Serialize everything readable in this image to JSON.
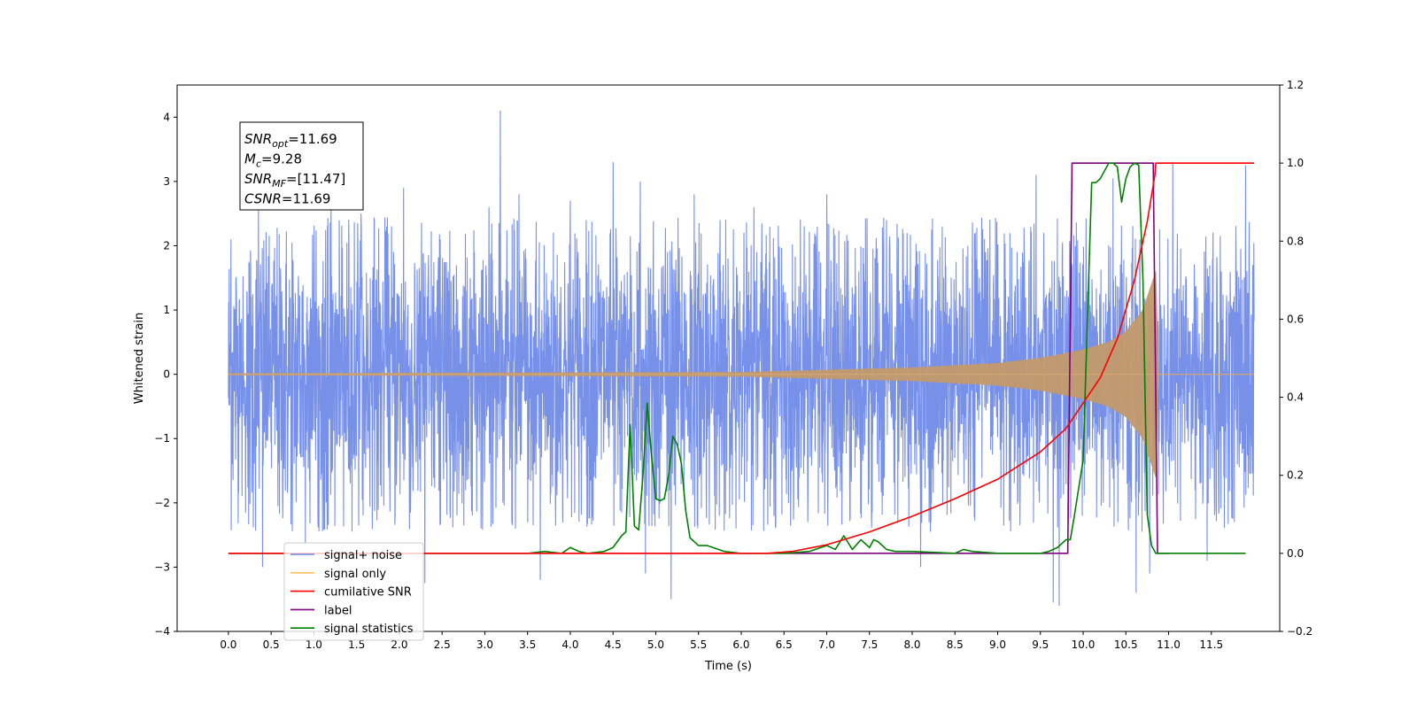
{
  "chart_data": {
    "type": "line",
    "xlabel": "Time (s)",
    "ylabel": "Whitened strain",
    "xlim": [
      -0.6,
      12.3
    ],
    "ylim": [
      -4,
      4.5
    ],
    "y2lim": [
      -0.2,
      1.2
    ],
    "x_ticks": [
      0.0,
      0.5,
      1.0,
      1.5,
      2.0,
      2.5,
      3.0,
      3.5,
      4.0,
      4.5,
      5.0,
      5.5,
      6.0,
      6.5,
      7.0,
      7.5,
      8.0,
      8.5,
      9.0,
      9.5,
      10.0,
      10.5,
      11.0,
      11.5
    ],
    "x_tick_labels": [
      "0.0",
      "0.5",
      "1.0",
      "1.5",
      "2.0",
      "2.5",
      "3.0",
      "3.5",
      "4.0",
      "4.5",
      "5.0",
      "5.5",
      "6.0",
      "6.5",
      "7.0",
      "7.5",
      "8.0",
      "8.5",
      "9.0",
      "9.5",
      "10.0",
      "10.5",
      "11.0",
      "11.5"
    ],
    "y_ticks": [
      -4,
      -3,
      -2,
      -1,
      0,
      1,
      2,
      3,
      4
    ],
    "y_tick_labels": [
      "−4",
      "−3",
      "−2",
      "−1",
      "0",
      "1",
      "2",
      "3",
      "4"
    ],
    "y2_ticks": [
      -0.2,
      0.0,
      0.2,
      0.4,
      0.6,
      0.8,
      1.0,
      1.2
    ],
    "y2_tick_labels": [
      "−0.2",
      "0.0",
      "0.2",
      "0.4",
      "0.6",
      "0.8",
      "1.0",
      "1.2"
    ],
    "annotation": [
      {
        "main": "SNR",
        "sub": "opt",
        "rest": "=11.69"
      },
      {
        "main": "M",
        "sub": "c",
        "rest": "=9.28"
      },
      {
        "main": "SNR",
        "sub": "MF",
        "rest": "=[11.47]"
      },
      {
        "main": "CSNR",
        "sub": "",
        "rest": "=11.69"
      }
    ],
    "legend_placement": "lower-left",
    "legend": [
      {
        "name": "signal+ noise",
        "color": "#6b87e6"
      },
      {
        "name": "signal only",
        "color": "#ffc15c"
      },
      {
        "name": "cumilative SNR",
        "color": "#ff0000"
      },
      {
        "name": "label",
        "color": "#800080"
      },
      {
        "name": "signal statistics",
        "color": "#008000"
      }
    ],
    "series": [
      {
        "name": "signal+ noise",
        "axis": "left",
        "color": "#6b87e6",
        "x_range": [
          0.0,
          12.0
        ],
        "typical_envelope": [
          -1.9,
          1.9
        ],
        "spikes": [
          [
            0.03,
            2.1
          ],
          [
            0.35,
            2.75
          ],
          [
            0.4,
            -3.0
          ],
          [
            0.9,
            -2.65
          ],
          [
            1.2,
            2.95
          ],
          [
            1.55,
            2.5
          ],
          [
            2.05,
            2.9
          ],
          [
            2.3,
            -3.25
          ],
          [
            3.05,
            2.6
          ],
          [
            3.18,
            4.1
          ],
          [
            3.4,
            2.8
          ],
          [
            3.65,
            -3.2
          ],
          [
            4.0,
            2.7
          ],
          [
            4.5,
            3.3
          ],
          [
            4.82,
            3.0
          ],
          [
            4.88,
            -3.1
          ],
          [
            5.18,
            -3.5
          ],
          [
            5.45,
            2.8
          ],
          [
            6.15,
            2.6
          ],
          [
            7.0,
            2.8
          ],
          [
            7.7,
            2.4
          ],
          [
            8.1,
            -3.0
          ],
          [
            9.45,
            3.1
          ],
          [
            9.65,
            -3.55
          ],
          [
            9.72,
            -3.6
          ],
          [
            10.35,
            3.05
          ],
          [
            10.62,
            -3.4
          ],
          [
            10.78,
            -3.1
          ],
          [
            11.05,
            3.3
          ],
          [
            11.45,
            -2.9
          ],
          [
            11.9,
            3.25
          ]
        ]
      },
      {
        "name": "signal only",
        "axis": "left",
        "color": "#ffc15c",
        "x_range": [
          0.0,
          12.0
        ],
        "amplitude_points": [
          [
            0.0,
            0.01
          ],
          [
            6.0,
            0.03
          ],
          [
            8.0,
            0.1
          ],
          [
            9.0,
            0.17
          ],
          [
            9.5,
            0.25
          ],
          [
            10.0,
            0.38
          ],
          [
            10.3,
            0.5
          ],
          [
            10.5,
            0.66
          ],
          [
            10.7,
            1.0
          ],
          [
            10.85,
            1.6
          ],
          [
            10.88,
            0.0
          ]
        ]
      },
      {
        "name": "cumilative SNR",
        "axis": "right",
        "color": "#ff0000",
        "x": [
          0.0,
          6.3,
          6.6,
          7.0,
          7.5,
          8.0,
          8.5,
          9.0,
          9.5,
          9.8,
          10.0,
          10.2,
          10.4,
          10.6,
          10.75,
          10.84,
          10.85,
          11.0,
          11.5,
          12.0
        ],
        "values": [
          0.0,
          0.0,
          0.005,
          0.022,
          0.055,
          0.095,
          0.14,
          0.19,
          0.26,
          0.32,
          0.385,
          0.45,
          0.55,
          0.7,
          0.85,
          0.97,
          1.0,
          1.0,
          1.0,
          1.0
        ]
      },
      {
        "name": "label",
        "axis": "right",
        "color": "#800080",
        "x": [
          0.0,
          9.82,
          9.87,
          10.82,
          10.87,
          11.0
        ],
        "values": [
          0.0,
          0.0,
          1.0,
          1.0,
          0.0,
          0.0
        ]
      },
      {
        "name": "signal statistics",
        "axis": "right",
        "color": "#008000",
        "x": [
          0.0,
          3.5,
          3.7,
          3.9,
          4.0,
          4.1,
          4.2,
          4.4,
          4.5,
          4.6,
          4.65,
          4.7,
          4.75,
          4.8,
          4.85,
          4.9,
          4.95,
          5.0,
          5.05,
          5.1,
          5.15,
          5.2,
          5.25,
          5.3,
          5.35,
          5.4,
          5.5,
          5.6,
          5.8,
          6.0,
          6.5,
          6.8,
          7.0,
          7.1,
          7.2,
          7.3,
          7.4,
          7.5,
          7.55,
          7.6,
          7.7,
          7.8,
          8.0,
          8.5,
          8.6,
          8.7,
          9.0,
          9.5,
          9.6,
          9.7,
          9.8,
          9.85,
          9.9,
          10.0,
          10.05,
          10.1,
          10.15,
          10.2,
          10.25,
          10.3,
          10.35,
          10.4,
          10.45,
          10.5,
          10.55,
          10.6,
          10.65,
          10.7,
          10.75,
          10.8,
          10.85,
          10.9,
          11.0,
          11.5,
          11.9
        ],
        "values": [
          0.0,
          0.0,
          0.005,
          0.0,
          0.015,
          0.005,
          0.0,
          0.005,
          0.015,
          0.045,
          0.055,
          0.33,
          0.07,
          0.06,
          0.2,
          0.385,
          0.25,
          0.14,
          0.135,
          0.14,
          0.2,
          0.3,
          0.28,
          0.23,
          0.11,
          0.04,
          0.02,
          0.02,
          0.005,
          0.0,
          0.0,
          0.005,
          0.02,
          0.01,
          0.045,
          0.01,
          0.035,
          0.015,
          0.035,
          0.03,
          0.01,
          0.005,
          0.005,
          0.0,
          0.01,
          0.005,
          0.0,
          0.0,
          0.005,
          0.015,
          0.035,
          0.035,
          0.1,
          0.24,
          0.6,
          0.95,
          0.95,
          0.96,
          0.98,
          1.0,
          1.0,
          0.99,
          0.9,
          0.96,
          0.99,
          1.0,
          0.995,
          0.7,
          0.1,
          0.02,
          0.0,
          0.0,
          0.0,
          0.0,
          0.0
        ]
      }
    ]
  }
}
